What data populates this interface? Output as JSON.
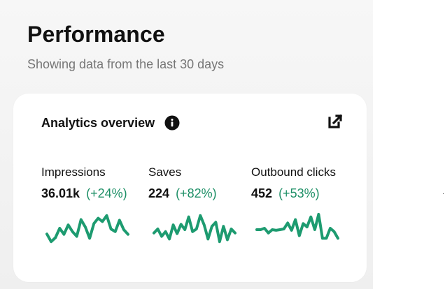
{
  "header": {
    "title": "Performance",
    "subtitle": "Showing data from the last 30 days"
  },
  "card": {
    "title": "Analytics overview",
    "info_icon": "info-icon",
    "external_icon": "external-link-icon"
  },
  "colors": {
    "accent": "#1d9b70",
    "change": "#1d8f66",
    "panel_background": "#f2f2f2"
  },
  "metrics": [
    {
      "label": "Impressions",
      "value": "36.01k",
      "change": "(+24%)",
      "trend": [
        0.35,
        0.12,
        0.24,
        0.52,
        0.34,
        0.62,
        0.42,
        0.28,
        0.78,
        0.56,
        0.22,
        0.66,
        0.82,
        0.72,
        0.9,
        0.5,
        0.42,
        0.76,
        0.48,
        0.34
      ]
    },
    {
      "label": "Saves",
      "value": "224",
      "change": "(+82%)",
      "trend": [
        0.38,
        0.5,
        0.28,
        0.42,
        0.2,
        0.62,
        0.36,
        0.64,
        0.48,
        0.86,
        0.42,
        0.5,
        0.9,
        0.62,
        0.2,
        0.58,
        0.7,
        0.12,
        0.58,
        0.18,
        0.5,
        0.38
      ]
    },
    {
      "label": "Outbound clicks",
      "value": "452",
      "change": "(+53%)",
      "trend": [
        0.48,
        0.48,
        0.52,
        0.38,
        0.48,
        0.46,
        0.48,
        0.5,
        0.68,
        0.46,
        0.78,
        0.3,
        0.66,
        0.56,
        0.86,
        0.48,
        0.94,
        0.22,
        0.22,
        0.52,
        0.42,
        0.22
      ]
    }
  ]
}
